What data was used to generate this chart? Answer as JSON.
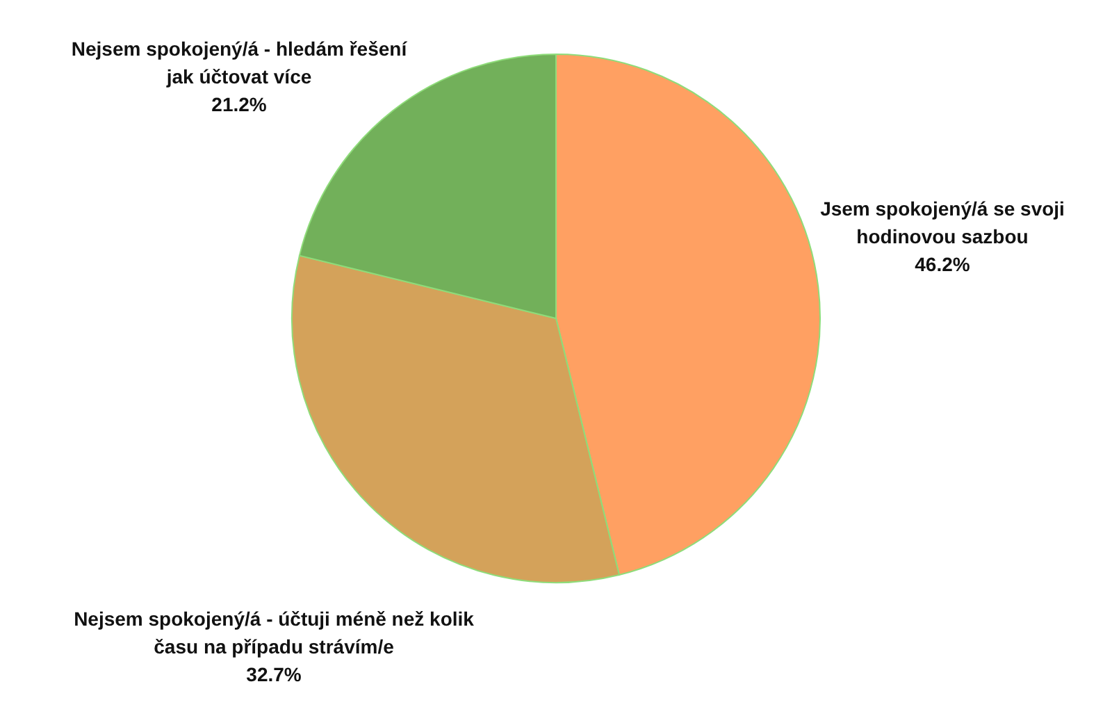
{
  "chart_data": {
    "type": "pie",
    "categories": [
      "Jsem spokojený/á se svoji hodinovou sazbou",
      "Nejsem spokojený/á - účtuji méně než kolik času na případu strávím/e",
      "Nejsem spokojený/á - hledám řešení jak účtovat více"
    ],
    "values": [
      46.2,
      32.7,
      21.2
    ],
    "value_labels": [
      "46.2%",
      "32.7%",
      "21.2%"
    ],
    "colors": [
      "#ffa062",
      "#d4a25a",
      "#72b05a"
    ]
  }
}
